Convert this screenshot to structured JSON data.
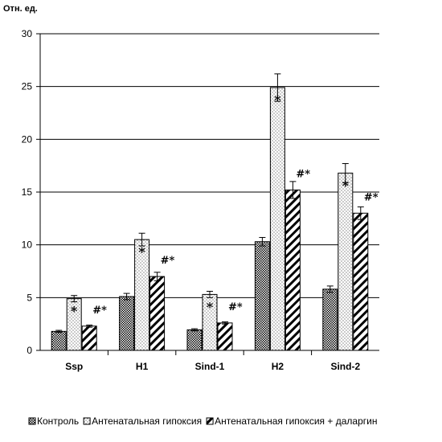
{
  "chart_data": {
    "type": "bar",
    "ylabel": "Отн. ед.",
    "ylim": [
      0,
      30
    ],
    "yticks": [
      0,
      5,
      10,
      15,
      20,
      25,
      30
    ],
    "grid": true,
    "legend_position": "bottom",
    "categories": [
      "Ssp",
      "H1",
      "Sind-1",
      "H2",
      "Sind-2"
    ],
    "series": [
      {
        "name": "Контроль",
        "pattern": "checker",
        "values": [
          1.8,
          5.1,
          1.95,
          10.3,
          5.8
        ],
        "errors": [
          0.1,
          0.3,
          0.1,
          0.4,
          0.3
        ],
        "marks": [
          "",
          "",
          "",
          "",
          ""
        ]
      },
      {
        "name": "Антенатальная гипоксия",
        "pattern": "dots",
        "values": [
          4.9,
          10.5,
          5.3,
          24.9,
          16.8
        ],
        "errors": [
          0.3,
          0.6,
          0.3,
          1.3,
          0.9
        ],
        "marks": [
          "*",
          "*",
          "*",
          "*",
          "*"
        ]
      },
      {
        "name": "Антенатальная гипоксия + даларгин",
        "pattern": "diagonal",
        "values": [
          2.3,
          7.0,
          2.6,
          15.2,
          13.0
        ],
        "errors": [
          0.1,
          0.4,
          0.1,
          0.8,
          0.6
        ],
        "marks": [
          "#*",
          "#*",
          "#*",
          "#*",
          "#*"
        ]
      }
    ]
  },
  "colors": {
    "bar_stroke": "#000000",
    "grid": "#000000",
    "background": "#ffffff"
  }
}
